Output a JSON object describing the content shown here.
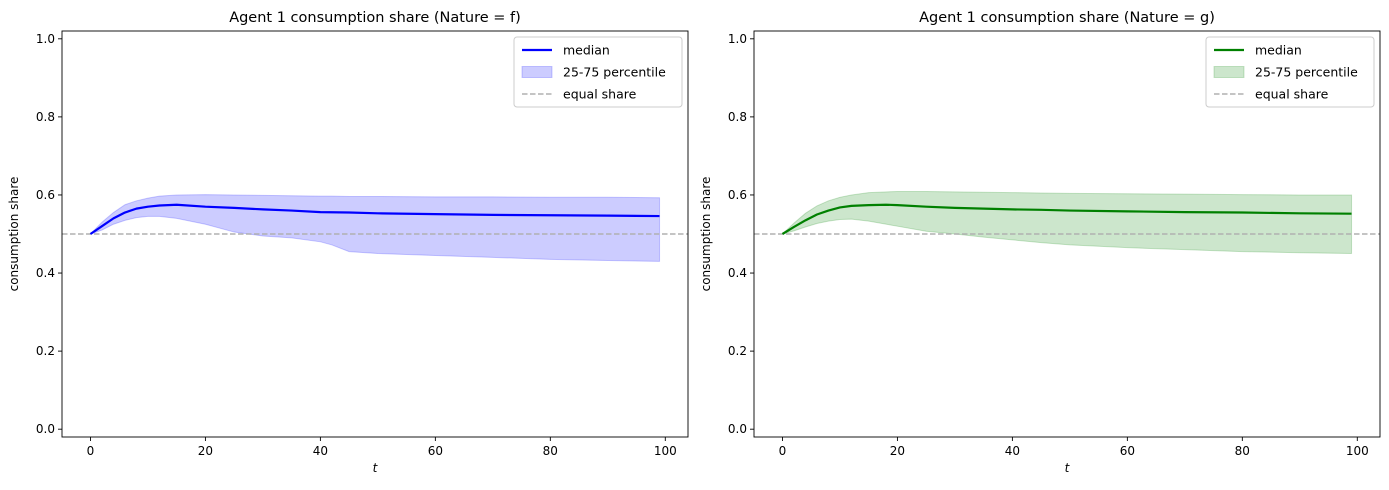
{
  "chart_data": [
    {
      "type": "line",
      "title": "Agent 1 consumption share (Nature = f)",
      "xlabel": "t",
      "ylabel": "consumption share",
      "xlim": [
        -4.95,
        103.95
      ],
      "ylim": [
        -0.02,
        1.02
      ],
      "xticks": [
        "0",
        "20",
        "40",
        "60",
        "80",
        "100"
      ],
      "yticks": [
        "0.0",
        "0.2",
        "0.4",
        "0.6",
        "0.8",
        "1.0"
      ],
      "grid": false,
      "legend_position": "top-right",
      "colors": {
        "median": "#0000ff",
        "band": "#0000ff",
        "equal": "#b0b0b0"
      },
      "series": [
        {
          "name": "median",
          "x": [
            0,
            2,
            4,
            6,
            8,
            10,
            12,
            15,
            20,
            25,
            30,
            35,
            40,
            45,
            50,
            60,
            70,
            80,
            90,
            99
          ],
          "y": [
            0.5,
            0.52,
            0.54,
            0.555,
            0.565,
            0.57,
            0.573,
            0.575,
            0.57,
            0.567,
            0.563,
            0.56,
            0.556,
            0.555,
            0.553,
            0.551,
            0.549,
            0.548,
            0.547,
            0.546
          ]
        },
        {
          "name": "25-75 percentile",
          "x": [
            0,
            2,
            4,
            6,
            8,
            10,
            12,
            15,
            20,
            25,
            30,
            35,
            40,
            42,
            45,
            50,
            60,
            70,
            80,
            90,
            99
          ],
          "lower": [
            0.5,
            0.51,
            0.525,
            0.535,
            0.542,
            0.545,
            0.545,
            0.54,
            0.525,
            0.505,
            0.495,
            0.49,
            0.48,
            0.472,
            0.455,
            0.45,
            0.445,
            0.44,
            0.435,
            0.432,
            0.43
          ],
          "upper": [
            0.5,
            0.53,
            0.555,
            0.575,
            0.585,
            0.592,
            0.597,
            0.6,
            0.601,
            0.6,
            0.599,
            0.598,
            0.597,
            0.597,
            0.596,
            0.596,
            0.595,
            0.595,
            0.594,
            0.594,
            0.593
          ]
        },
        {
          "name": "equal share",
          "y": 0.5
        }
      ]
    },
    {
      "type": "line",
      "title": "Agent 1 consumption share (Nature = g)",
      "xlabel": "t",
      "ylabel": "consumption share",
      "xlim": [
        -4.95,
        103.95
      ],
      "ylim": [
        -0.02,
        1.02
      ],
      "xticks": [
        "0",
        "20",
        "40",
        "60",
        "80",
        "100"
      ],
      "yticks": [
        "0.0",
        "0.2",
        "0.4",
        "0.6",
        "0.8",
        "1.0"
      ],
      "grid": false,
      "legend_position": "top-right",
      "colors": {
        "median": "#008000",
        "band": "#008000",
        "equal": "#b0b0b0"
      },
      "series": [
        {
          "name": "median",
          "x": [
            0,
            2,
            4,
            6,
            8,
            10,
            12,
            15,
            18,
            20,
            25,
            30,
            35,
            40,
            45,
            50,
            60,
            70,
            80,
            90,
            99
          ],
          "y": [
            0.5,
            0.518,
            0.535,
            0.55,
            0.56,
            0.568,
            0.572,
            0.574,
            0.575,
            0.574,
            0.57,
            0.567,
            0.565,
            0.563,
            0.562,
            0.56,
            0.558,
            0.556,
            0.555,
            0.553,
            0.552
          ]
        },
        {
          "name": "25-75 percentile",
          "x": [
            0,
            2,
            4,
            6,
            8,
            10,
            12,
            15,
            20,
            25,
            30,
            35,
            40,
            45,
            50,
            60,
            70,
            80,
            90,
            99
          ],
          "lower": [
            0.5,
            0.508,
            0.518,
            0.527,
            0.533,
            0.537,
            0.538,
            0.533,
            0.52,
            0.507,
            0.5,
            0.492,
            0.485,
            0.478,
            0.472,
            0.465,
            0.46,
            0.455,
            0.452,
            0.45
          ],
          "upper": [
            0.5,
            0.528,
            0.553,
            0.572,
            0.585,
            0.594,
            0.6,
            0.606,
            0.609,
            0.609,
            0.608,
            0.607,
            0.606,
            0.605,
            0.604,
            0.603,
            0.602,
            0.601,
            0.6,
            0.6
          ]
        },
        {
          "name": "equal share",
          "y": 0.5
        }
      ]
    }
  ]
}
